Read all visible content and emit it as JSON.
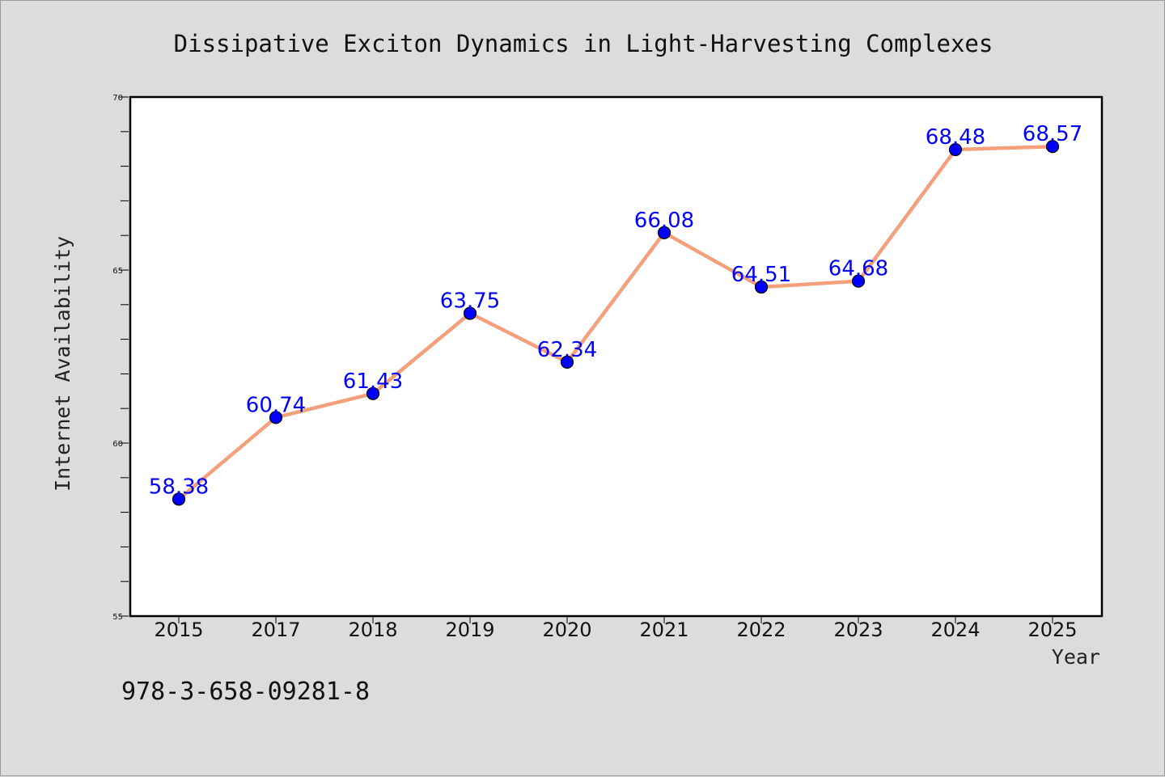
{
  "chart_data": {
    "type": "line",
    "title": "Dissipative Exciton Dynamics in Light-Harvesting Complexes",
    "xlabel": "Year",
    "ylabel": "Internet Availability",
    "categories": [
      "2015",
      "2017",
      "2018",
      "2019",
      "2020",
      "2021",
      "2022",
      "2023",
      "2024",
      "2025"
    ],
    "values": [
      58.38,
      60.74,
      61.43,
      63.75,
      62.34,
      66.08,
      64.51,
      64.68,
      68.48,
      68.57
    ],
    "data_labels": [
      "58.38",
      "60.74",
      "61.43",
      "63.75",
      "62.34",
      "66.08",
      "64.51",
      "64.68",
      "68.48",
      "68.57"
    ],
    "ylim": [
      55,
      70
    ],
    "yticks": [
      55,
      60,
      65,
      70
    ],
    "ytick_labels": [
      "55",
      "60",
      "65",
      "70"
    ],
    "y_minor_step": 1,
    "grid": false,
    "legend": "none",
    "colors": {
      "line": "#f4a07c",
      "marker": "#0000ff",
      "data_label": "#0000ff",
      "plot_background": "#ffffff",
      "figure_background": "#dcdcdc"
    }
  },
  "footer": {
    "isbn": "978-3-658-09281-8"
  }
}
